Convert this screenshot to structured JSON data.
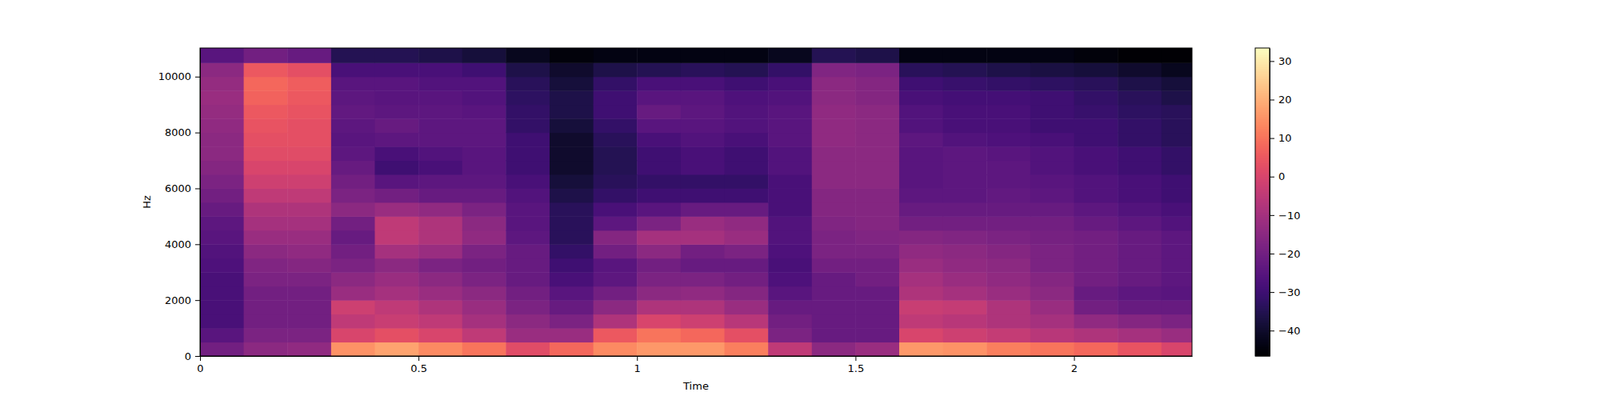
{
  "chart_data": {
    "type": "heatmap",
    "x_label": "Time",
    "y_label": "Hz",
    "xlim": [
      0,
      2.27
    ],
    "ylim": [
      0,
      11025
    ],
    "xticks": [
      0,
      0.5,
      1,
      1.5,
      2
    ],
    "yticks": [
      0,
      2000,
      4000,
      6000,
      8000,
      10000
    ],
    "x_bins": [
      0,
      0.1,
      0.2,
      0.3,
      0.4,
      0.5,
      0.6,
      0.7,
      0.8,
      0.9,
      1.0,
      1.1,
      1.2,
      1.3,
      1.4,
      1.5,
      1.6,
      1.7,
      1.8,
      1.9,
      2.0,
      2.1,
      2.2,
      2.27
    ],
    "y_bins": [
      0,
      500,
      1000,
      1500,
      2000,
      2500,
      3000,
      3500,
      4000,
      4500,
      5000,
      5500,
      6000,
      6500,
      7000,
      7500,
      8000,
      8500,
      9000,
      9500,
      10000,
      10500,
      11025
    ],
    "values": [
      [
        -20,
        -25,
        -28,
        -28,
        -28,
        -28,
        -27,
        -26,
        -25,
        -24,
        -22,
        -20,
        -18,
        -16,
        -15,
        -15,
        -14,
        -13,
        -12,
        -13,
        -15,
        -25
      ],
      [
        -15,
        -18,
        -20,
        -20,
        -20,
        -18,
        -17,
        -15,
        -12,
        -10,
        -8,
        -5,
        -2,
        0,
        2,
        3,
        4,
        5,
        7,
        8,
        5,
        -20
      ],
      [
        -14,
        -18,
        -20,
        -20,
        -20,
        -18,
        -16,
        -14,
        -12,
        -10,
        -8,
        -5,
        -2,
        0,
        2,
        3,
        3,
        4,
        5,
        6,
        3,
        -22
      ],
      [
        15,
        0,
        -5,
        -2,
        -12,
        -15,
        -18,
        -20,
        -22,
        -20,
        -15,
        -18,
        -20,
        -22,
        -24,
        -25,
        -24,
        -23,
        -24,
        -25,
        -28,
        -35
      ],
      [
        18,
        3,
        -3,
        -5,
        -10,
        -12,
        -15,
        -10,
        -5,
        -5,
        -12,
        -20,
        -25,
        -30,
        -28,
        -24,
        -22,
        -24,
        -25,
        -25,
        -28,
        -35
      ],
      [
        14,
        0,
        -5,
        -8,
        -12,
        -15,
        -18,
        -12,
        -8,
        -8,
        -14,
        -22,
        -24,
        -28,
        -26,
        -24,
        -24,
        -24,
        -25,
        -26,
        -28,
        -36
      ],
      [
        10,
        -5,
        -10,
        -12,
        -15,
        -18,
        -20,
        -18,
        -14,
        -15,
        -18,
        -22,
        -24,
        -25,
        -25,
        -24,
        -24,
        -25,
        -26,
        -26,
        -30,
        -38
      ],
      [
        2,
        -12,
        -15,
        -18,
        -20,
        -22,
        -22,
        -22,
        -24,
        -25,
        -25,
        -26,
        -28,
        -30,
        -30,
        -30,
        -32,
        -32,
        -33,
        -34,
        -36,
        -42
      ],
      [
        8,
        -12,
        -18,
        -22,
        -25,
        -28,
        -30,
        -32,
        -34,
        -34,
        -34,
        -36,
        -38,
        -40,
        -40,
        -40,
        -38,
        -36,
        -36,
        -38,
        -40,
        -45
      ],
      [
        14,
        5,
        -8,
        -15,
        -20,
        -24,
        -25,
        -20,
        -16,
        -24,
        -28,
        -32,
        -34,
        -35,
        -35,
        -34,
        -32,
        -30,
        -30,
        -32,
        -36,
        -44
      ],
      [
        16,
        10,
        0,
        -8,
        -15,
        -18,
        -20,
        -15,
        -10,
        -18,
        -25,
        -30,
        -32,
        -30,
        -30,
        -28,
        -25,
        -22,
        -25,
        -28,
        -35,
        -44
      ],
      [
        16,
        8,
        -2,
        -8,
        -14,
        -18,
        -22,
        -20,
        -10,
        -12,
        -22,
        -30,
        -32,
        -28,
        -28,
        -26,
        -25,
        -24,
        -25,
        -28,
        -34,
        -44
      ],
      [
        12,
        3,
        -6,
        -12,
        -16,
        -20,
        -22,
        -18,
        -12,
        -14,
        -22,
        -30,
        -32,
        -30,
        -30,
        -28,
        -26,
        -26,
        -27,
        -30,
        -35,
        -44
      ],
      [
        -5,
        -18,
        -20,
        -22,
        -25,
        -27,
        -28,
        -27,
        -26,
        -26,
        -28,
        -28,
        -28,
        -26,
        -26,
        -25,
        -25,
        -25,
        -26,
        -28,
        -32,
        -42
      ],
      [
        -15,
        -22,
        -22,
        -22,
        -22,
        -22,
        -20,
        -18,
        -18,
        -17,
        -16,
        -16,
        -15,
        -15,
        -15,
        -14,
        -14,
        -14,
        -15,
        -15,
        -17,
        -35
      ],
      [
        -12,
        -22,
        -22,
        -22,
        -22,
        -20,
        -20,
        -18,
        -17,
        -16,
        -16,
        -16,
        -15,
        -15,
        -15,
        -15,
        -15,
        -15,
        -16,
        -16,
        -18,
        -36
      ],
      [
        16,
        0,
        -5,
        -3,
        -8,
        -10,
        -12,
        -14,
        -16,
        -20,
        -22,
        -24,
        -25,
        -25,
        -25,
        -24,
        -26,
        -26,
        -28,
        -30,
        -34,
        -44
      ],
      [
        15,
        -2,
        -6,
        -4,
        -10,
        -12,
        -14,
        -15,
        -17,
        -20,
        -22,
        -24,
        -24,
        -24,
        -24,
        -26,
        -28,
        -28,
        -29,
        -31,
        -35,
        -44
      ],
      [
        12,
        -4,
        -8,
        -8,
        -12,
        -14,
        -15,
        -16,
        -18,
        -20,
        -22,
        -23,
        -24,
        -24,
        -25,
        -27,
        -28,
        -28,
        -29,
        -32,
        -36,
        -44
      ],
      [
        10,
        -6,
        -10,
        -12,
        -15,
        -16,
        -18,
        -18,
        -19,
        -20,
        -22,
        -24,
        -25,
        -26,
        -26,
        -28,
        -30,
        -30,
        -30,
        -33,
        -37,
        -44
      ],
      [
        8,
        -8,
        -14,
        -20,
        -22,
        -20,
        -20,
        -20,
        -20,
        -22,
        -24,
        -26,
        -26,
        -28,
        -28,
        -30,
        -30,
        -31,
        -32,
        -34,
        -38,
        -45
      ],
      [
        4,
        -10,
        -16,
        -22,
        -24,
        -22,
        -22,
        -22,
        -22,
        -24,
        -26,
        -28,
        -28,
        -30,
        -30,
        -32,
        -32,
        -33,
        -34,
        -36,
        -40,
        -46
      ],
      [
        0,
        -12,
        -18,
        -22,
        -25,
        -24,
        -24,
        -24,
        -24,
        -26,
        -28,
        -30,
        -30,
        -32,
        -32,
        -34,
        -34,
        -34,
        -36,
        -38,
        -42,
        -46
      ]
    ],
    "colorbar_range": [
      -46.6,
      33.4
    ],
    "colorbar_ticks": [
      {
        "value": -40,
        "label": "−40"
      },
      {
        "value": -30,
        "label": "−30"
      },
      {
        "value": -20,
        "label": "−20"
      },
      {
        "value": -10,
        "label": "−10"
      },
      0,
      10,
      20,
      30
    ]
  }
}
